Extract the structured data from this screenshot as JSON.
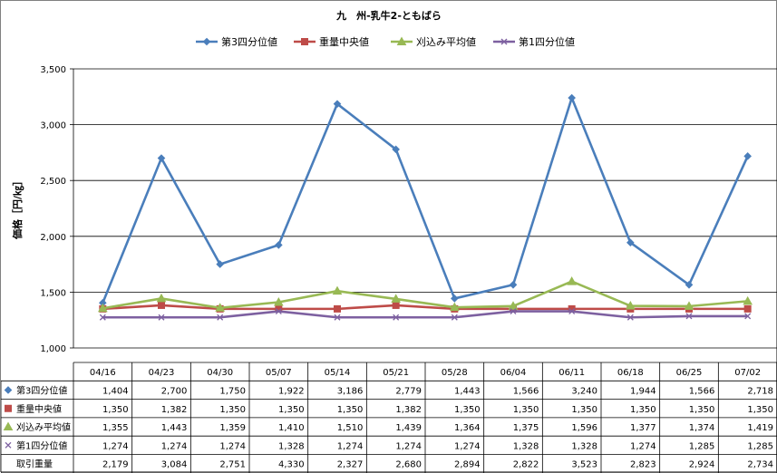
{
  "chart_data": {
    "type": "line",
    "title": "九　州-乳牛2-ともばら",
    "ylabel": "価格［円/㎏］",
    "ylim": [
      1000,
      3500
    ],
    "yticks": [
      1000,
      1500,
      2000,
      2500,
      3000,
      3500
    ],
    "ytick_labels": [
      "1,000",
      "1,500",
      "2,000",
      "2,500",
      "3,000",
      "3,500"
    ],
    "grid": true,
    "legend_position": "top",
    "categories": [
      "04/16",
      "04/23",
      "04/30",
      "05/07",
      "05/14",
      "05/21",
      "05/28",
      "06/04",
      "06/11",
      "06/18",
      "06/25",
      "07/02"
    ],
    "series": [
      {
        "name": "第3四分位値",
        "color": "#4a7ebb",
        "marker": "diamond",
        "values": [
          1404,
          2700,
          1750,
          1922,
          3186,
          2779,
          1443,
          1566,
          3240,
          1944,
          1566,
          2718
        ],
        "labels": [
          "1,404",
          "2,700",
          "1,750",
          "1,922",
          "3,186",
          "2,779",
          "1,443",
          "1,566",
          "3,240",
          "1,944",
          "1,566",
          "2,718"
        ]
      },
      {
        "name": "重量中央値",
        "color": "#be4b48",
        "marker": "square",
        "values": [
          1350,
          1382,
          1350,
          1350,
          1350,
          1382,
          1350,
          1350,
          1350,
          1350,
          1350,
          1350
        ],
        "labels": [
          "1,350",
          "1,382",
          "1,350",
          "1,350",
          "1,350",
          "1,382",
          "1,350",
          "1,350",
          "1,350",
          "1,350",
          "1,350",
          "1,350"
        ]
      },
      {
        "name": "刈込み平均値",
        "color": "#98b954",
        "marker": "triangle",
        "values": [
          1355,
          1443,
          1359,
          1410,
          1510,
          1439,
          1364,
          1375,
          1596,
          1377,
          1374,
          1419
        ],
        "labels": [
          "1,355",
          "1,443",
          "1,359",
          "1,410",
          "1,510",
          "1,439",
          "1,364",
          "1,375",
          "1,596",
          "1,377",
          "1,374",
          "1,419"
        ]
      },
      {
        "name": "第1四分位値",
        "color": "#7d60a0",
        "marker": "x",
        "values": [
          1274,
          1274,
          1274,
          1328,
          1274,
          1274,
          1274,
          1328,
          1328,
          1274,
          1285,
          1285
        ],
        "labels": [
          "1,274",
          "1,274",
          "1,274",
          "1,328",
          "1,274",
          "1,274",
          "1,274",
          "1,328",
          "1,328",
          "1,274",
          "1,285",
          "1,285"
        ]
      }
    ],
    "table_extra_row": {
      "name": "取引重量",
      "labels": [
        "2,179",
        "3,084",
        "2,751",
        "4,330",
        "2,327",
        "2,680",
        "2,894",
        "2,822",
        "3,523",
        "2,823",
        "2,924",
        "2,734"
      ]
    }
  }
}
